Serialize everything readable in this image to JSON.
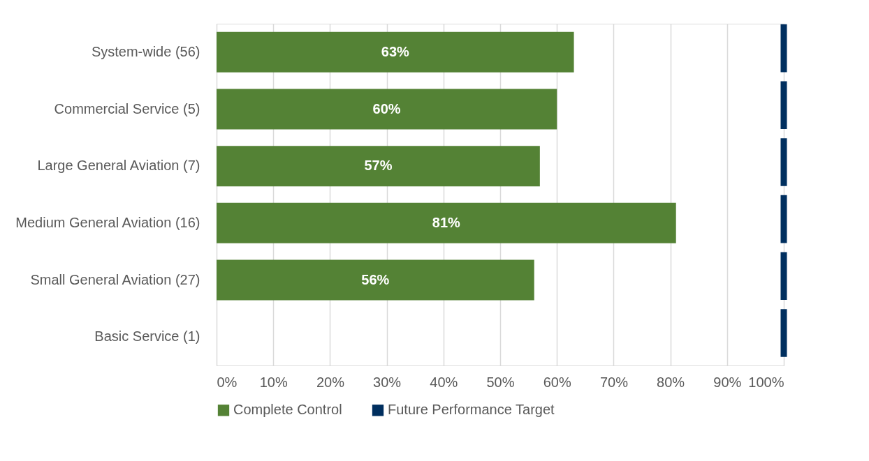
{
  "chart_data": {
    "type": "bar",
    "orientation": "horizontal",
    "categories": [
      "System-wide (56)",
      "Commercial Service (5)",
      "Large General Aviation (7)",
      "Medium General Aviation (16)",
      "Small General Aviation (27)",
      "Basic Service (1)"
    ],
    "series": [
      {
        "name": "Complete Control",
        "color": "#548235",
        "values": [
          63,
          60,
          57,
          81,
          56,
          0
        ],
        "value_labels": [
          "63%",
          "60%",
          "57%",
          "81%",
          "56%",
          null
        ]
      }
    ],
    "ref_lines": [
      {
        "axis": "x",
        "value": 100,
        "label": "Future Performance Target",
        "color": "#002f5f",
        "line_style": "dashed"
      }
    ],
    "xlim": [
      0,
      100
    ],
    "xticks": [
      {
        "value": 0,
        "label": "0%"
      },
      {
        "value": 10,
        "label": "10%"
      },
      {
        "value": 20,
        "label": "20%"
      },
      {
        "value": 30,
        "label": "30%"
      },
      {
        "value": 40,
        "label": "40%"
      },
      {
        "value": 50,
        "label": "50%"
      },
      {
        "value": 60,
        "label": "60%"
      },
      {
        "value": 70,
        "label": "70%"
      },
      {
        "value": 80,
        "label": "80%"
      },
      {
        "value": 90,
        "label": "90%"
      },
      {
        "value": 100,
        "label": "100%"
      }
    ],
    "grid": "x",
    "legend": "bottom"
  }
}
